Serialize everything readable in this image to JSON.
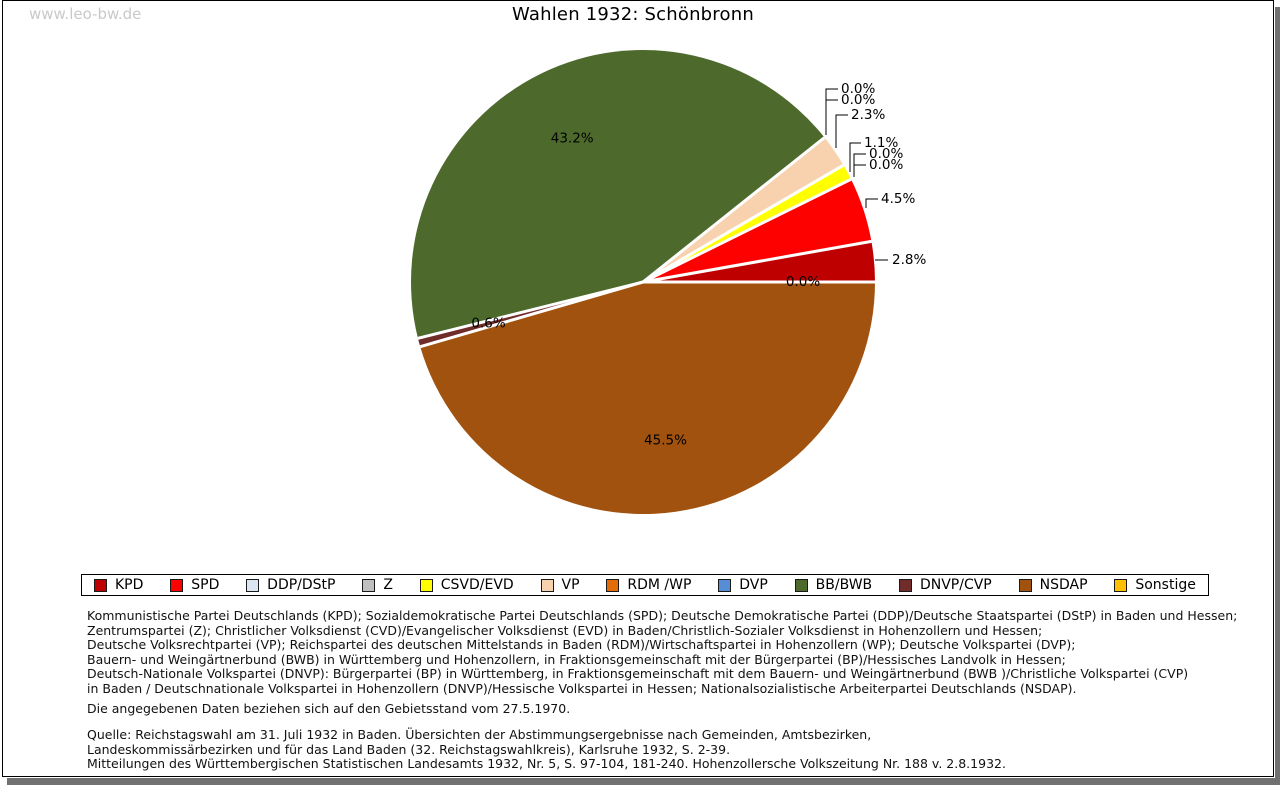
{
  "watermark": "www.leo-bw.de",
  "title": "Wahlen 1932: Schönbronn",
  "chart_data": {
    "type": "pie",
    "title": "Wahlen 1932: Schönbronn",
    "unit": "percent",
    "start_angle_deg": 0,
    "direction": "counterclockwise",
    "legend_position": "bottom",
    "series": [
      {
        "key": "kpd",
        "name": "KPD",
        "value": 2.8,
        "display": "2.8%",
        "color": "#bf0000"
      },
      {
        "key": "spd",
        "name": "SPD",
        "value": 4.5,
        "display": "4.5%",
        "color": "#fd0000"
      },
      {
        "key": "ddp",
        "name": "DDP/DStP",
        "value": 0.0,
        "display": "0.0%",
        "color": "#dce6f2"
      },
      {
        "key": "z",
        "name": "Z",
        "value": 0.0,
        "display": "0.0%",
        "color": "#bfbfbf"
      },
      {
        "key": "csvd",
        "name": "CSVD/EVD",
        "value": 1.1,
        "display": "1.1%",
        "color": "#ffff00"
      },
      {
        "key": "vp",
        "name": "VP",
        "value": 2.3,
        "display": "2.3%",
        "color": "#f8d2ae"
      },
      {
        "key": "rdm",
        "name": "RDM /WP",
        "value": 0.0,
        "display": "0.0%",
        "color": "#e36c0a"
      },
      {
        "key": "dvp",
        "name": "DVP",
        "value": 0.0,
        "display": "0.0%",
        "color": "#568ed5"
      },
      {
        "key": "bb",
        "name": "BB/BWB",
        "value": 43.2,
        "display": "43.2%",
        "color": "#4d6a2c"
      },
      {
        "key": "dnvp",
        "name": "DNVP/CVP",
        "value": 0.6,
        "display": "0.6%",
        "color": "#6f2c2a"
      },
      {
        "key": "nsdap",
        "name": "NSDAP",
        "value": 45.5,
        "display": "45.5%",
        "color": "#a0520e"
      },
      {
        "key": "sonstige",
        "name": "Sonstige",
        "value": 0.0,
        "display": "0.0%",
        "color": "#fec000"
      }
    ]
  },
  "notes": [
    "Kommunistische Partei Deutschlands (KPD); Sozialdemokratische Partei Deutschlands (SPD); Deutsche Demokratische Partei (DDP)/Deutsche Staatspartei (DStP) in Baden und Hessen;",
    "Zentrumspartei (Z); Christlicher Volksdienst (CVD)/Evangelischer Volksdienst (EVD) in Baden/Christlich-Sozialer Volksdienst in Hohenzollern und Hessen;",
    "Deutsche Volksrechtpartei (VP); Reichspartei des deutschen Mittelstands in Baden (RDM)/Wirtschaftspartei in Hohenzollern (WP); Deutsche Volkspartei (DVP);",
    "Bauern- und Weingärtnerbund (BWB) in Württemberg und Hohenzollern, in Fraktionsgemeinschaft mit der Bürgerpartei (BP)/Hessisches Landvolk in Hessen;",
    "Deutsch-Nationale Volkspartei (DNVP): Bürgerpartei (BP) in Württemberg, in Fraktionsgemeinschaft mit dem Bauern- und Weingärtnerbund (BWB )/Christliche Volkspartei (CVP)",
    "in Baden / Deutschnationale Volkspartei in Hohenzollern (DNVP)/Hessische Volkspartei in Hessen; Nationalsozialistische Arbeiterpartei Deutschlands (NSDAP)."
  ],
  "geo_note": "Die angegebenen Daten beziehen sich auf den Gebietsstand vom 27.5.1970.",
  "source_lines": [
    "Quelle: Reichstagswahl am 31. Juli 1932 in Baden. Übersichten der Abstimmungsergebnisse nach Gemeinden, Amtsbezirken,",
    "Landeskommissärbezirken und für das Land Baden (32. Reichstagswahlkreis), Karlsruhe 1932, S. 2-39.",
    "Mitteilungen des Württembergischen Statistischen Landesamts 1932, Nr. 5, S. 97-104, 181-240. Hohenzollersche Volkszeitung Nr. 188 v. 2.8.1932."
  ]
}
